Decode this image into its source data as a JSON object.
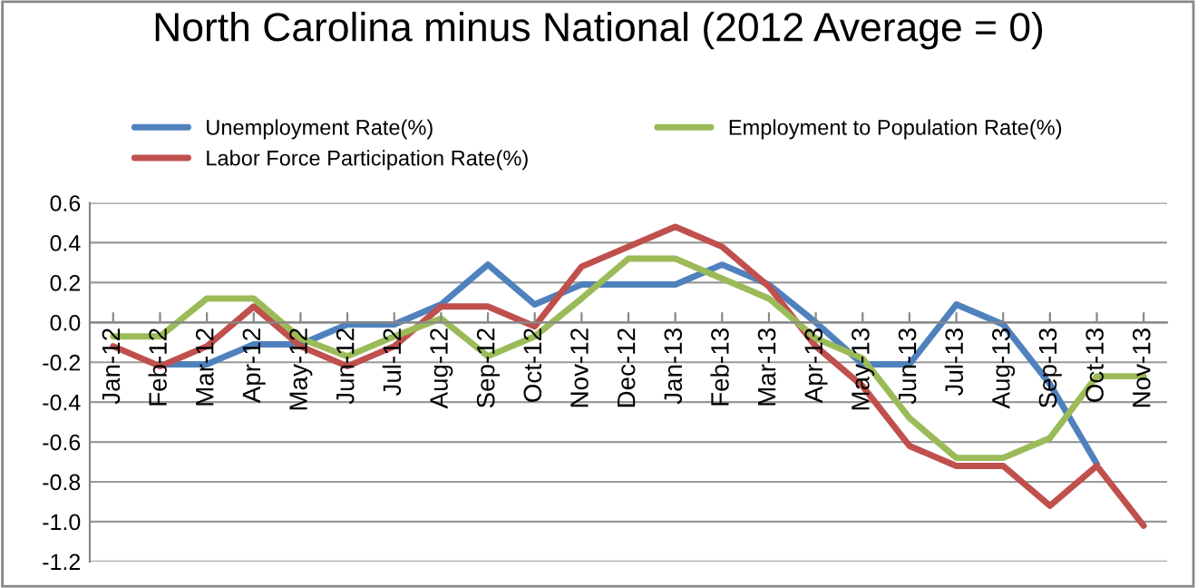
{
  "chart_data": {
    "type": "line",
    "title": "North Carolina minus National (2012 Average = 0)",
    "categories": [
      "Jan-12",
      "Feb-12",
      "Mar-12",
      "Apr-12",
      "May-12",
      "Jun-12",
      "Jul-12",
      "Aug-12",
      "Sep-12",
      "Oct-12",
      "Nov-12",
      "Dec-12",
      "Jan-13",
      "Feb-13",
      "Mar-13",
      "Apr-13",
      "May-13",
      "Jun-13",
      "Jul-13",
      "Aug-13",
      "Sep-13",
      "Oct-13",
      "Nov-13"
    ],
    "series": [
      {
        "name": "Unemployment Rate(%)",
        "color": "#4f81bd",
        "values": [
          null,
          -0.21,
          -0.21,
          -0.11,
          -0.11,
          -0.01,
          -0.01,
          0.09,
          0.29,
          0.09,
          0.19,
          0.19,
          0.19,
          0.29,
          0.19,
          0.0,
          -0.21,
          -0.21,
          0.09,
          -0.01,
          -0.31,
          -0.71,
          null
        ]
      },
      {
        "name": "Labor Force Participation Rate(%)",
        "color": "#c0504d",
        "values": [
          -0.12,
          -0.22,
          -0.12,
          0.08,
          -0.12,
          -0.22,
          -0.12,
          0.08,
          0.08,
          -0.02,
          0.28,
          0.38,
          0.48,
          0.38,
          0.18,
          -0.12,
          -0.32,
          -0.62,
          -0.72,
          -0.72,
          -0.92,
          -0.72,
          -1.02
        ]
      },
      {
        "name": "Employment to Population Rate(%)",
        "color": "#9bbb59",
        "values": [
          -0.07,
          -0.07,
          0.12,
          0.12,
          -0.08,
          -0.17,
          -0.07,
          0.02,
          -0.17,
          -0.07,
          0.12,
          0.32,
          0.32,
          0.22,
          0.12,
          -0.08,
          -0.18,
          -0.48,
          -0.68,
          -0.68,
          -0.58,
          -0.27,
          -0.27
        ]
      }
    ],
    "ylim": [
      -1.2,
      0.6
    ],
    "yticks": [
      {
        "value": -1.2,
        "label": "-1.2"
      },
      {
        "value": -1.0,
        "label": "-1.0"
      },
      {
        "value": -0.8,
        "label": "-0.8"
      },
      {
        "value": -0.6,
        "label": "-0.6"
      },
      {
        "value": -0.4,
        "label": "-0.4"
      },
      {
        "value": -0.2,
        "label": "-0.2"
      },
      {
        "value": 0.0,
        "label": "0.0"
      },
      {
        "value": 0.2,
        "label": "0.2"
      },
      {
        "value": 0.4,
        "label": "0.4"
      },
      {
        "value": 0.6,
        "label": "0.6"
      }
    ],
    "grid": "y",
    "legend": "top",
    "marker": "none",
    "line_style": "solid"
  }
}
